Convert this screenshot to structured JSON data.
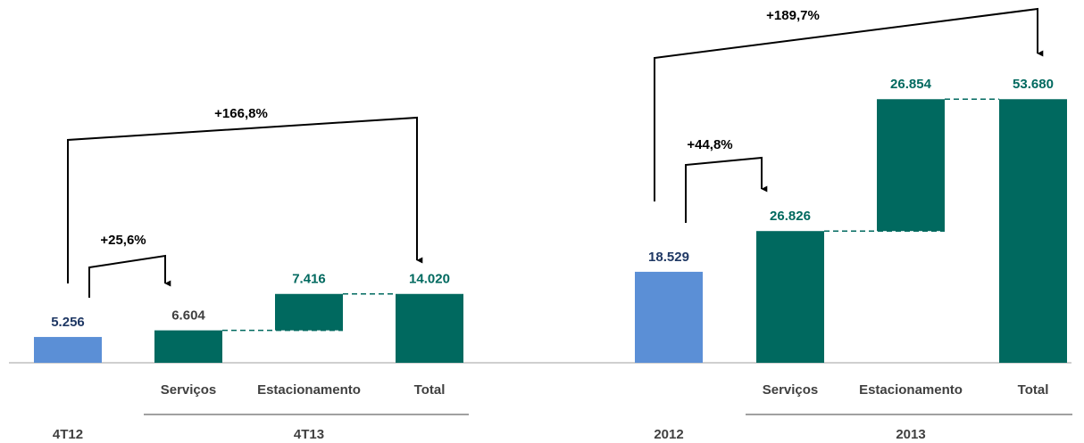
{
  "chart_data": [
    {
      "type": "waterfall",
      "categories": [
        null,
        "Serviços",
        "Estacionamento",
        "Total"
      ],
      "groups": [
        "4T12",
        "4T13"
      ],
      "values": [
        5256,
        6604,
        7416,
        14020
      ],
      "value_labels": [
        "5.256",
        "6.604",
        "7.416",
        "14.020"
      ],
      "colors": [
        "#5b8fd6",
        "#00695f",
        "#00695f",
        "#00695f"
      ],
      "label_colors": [
        "#1f3864",
        "#404040",
        "#00695f",
        "#00695f"
      ],
      "annotations": [
        "+166,8%",
        "+25,6%"
      ],
      "ylim": [
        0,
        55000
      ]
    },
    {
      "type": "waterfall",
      "categories": [
        null,
        "Serviços",
        "Estacionamento",
        "Total"
      ],
      "groups": [
        "2012",
        "2013"
      ],
      "values": [
        18529,
        26826,
        26854,
        53680
      ],
      "value_labels": [
        "18.529",
        "26.826",
        "26.854",
        "53.680"
      ],
      "colors": [
        "#5b8fd6",
        "#00695f",
        "#00695f",
        "#00695f"
      ],
      "label_colors": [
        "#1f3864",
        "#00695f",
        "#00695f",
        "#00695f"
      ],
      "annotations": [
        "+189,7%",
        "+44,8%"
      ],
      "ylim": [
        0,
        55000
      ]
    }
  ]
}
